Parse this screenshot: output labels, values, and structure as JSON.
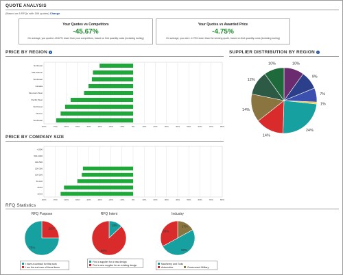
{
  "page": {
    "title": "QUOTE ANALYSIS",
    "based_on_text": "(Based on 8 RFQs with 189 quotes)",
    "change_link": "Change"
  },
  "cards": [
    {
      "title": "Your Quotes vs Competitors",
      "value": "-45.67%",
      "desc": "On average, you quoted -45.67% lower than your competitors, based on first quantity costs (including tooling)"
    },
    {
      "title": "Your Quotes vs Awarded Price",
      "value": "-4.75%",
      "desc": "On average, you were -4.75% lower than the winning quote, based on first quantity costs (including tooling)"
    }
  ],
  "sections": {
    "price_by_region": "PRICE BY REGION",
    "supplier_distribution": "SUPPLIER DISTRIBUTION BY REGION",
    "price_by_company_size": "PRICE BY COMPANY SIZE",
    "rfq_statistics": "RFQ Statistics"
  },
  "colors": {
    "bar_green": "#1fa83a",
    "teal": "#17a0a0",
    "red": "#d92b2b",
    "gold": "#f2c530",
    "navy": "#2b3f8a",
    "purple": "#6a2c6e",
    "olive": "#7d6a3a",
    "darkgreen": "#1e5a3a",
    "accent_green": "#1d8a2c",
    "link_blue": "#1a4f9a"
  },
  "chart_data": [
    {
      "type": "bar",
      "orientation": "horizontal",
      "title": "PRICE BY REGION",
      "categories": [
        "Northeast",
        "Mid-Atlantic",
        "Southeast",
        "Canada",
        "Mountain West",
        "Pacific West",
        "Northwest",
        "Mexico",
        "Southeast"
      ],
      "values": [
        -30,
        -36,
        -37,
        -40,
        -44,
        -56,
        -61,
        -65,
        -69
      ],
      "xlim": [
        -80,
        80
      ],
      "xticks": [
        "-80%",
        "-70%",
        "-60%",
        "-50%",
        "-40%",
        "-30%",
        "-20%",
        "-10%",
        "0%",
        "10%",
        "20%",
        "30%",
        "40%",
        "50%",
        "60%",
        "70%",
        "80%"
      ],
      "grid": true
    },
    {
      "type": "bar",
      "orientation": "horizontal",
      "title": "PRICE BY COMPANY SIZE",
      "categories": [
        "<1000",
        "500-1000",
        "300-500",
        "200-300",
        "100-200",
        "50-100",
        "25-50",
        "10-25"
      ],
      "values": [
        0,
        0,
        0,
        -45,
        -46,
        -50,
        -62,
        -65
      ],
      "xlim": [
        -80,
        80
      ],
      "xticks": [
        "-80%",
        "-70%",
        "-60%",
        "-50%",
        "-40%",
        "-30%",
        "-20%",
        "-10%",
        "0%",
        "10%",
        "20%",
        "30%",
        "40%",
        "50%",
        "60%",
        "70%",
        "80%"
      ],
      "grid": true
    },
    {
      "type": "pie",
      "title": "SUPPLIER DISTRIBUTION BY REGION",
      "slices": [
        {
          "value": 10,
          "label": "10%",
          "color": "#6a2c6e"
        },
        {
          "value": 9,
          "label": "9%",
          "color": "#2b3f8a"
        },
        {
          "value": 7,
          "label": "7%",
          "color": "#3a4fae"
        },
        {
          "value": 1,
          "label": "1%",
          "color": "#f2c530"
        },
        {
          "value": 24,
          "label": "24%",
          "color": "#17a0a0"
        },
        {
          "value": 14,
          "label": "14%",
          "color": "#d92b2b"
        },
        {
          "value": 14,
          "label": "14%",
          "color": "#8a7540"
        },
        {
          "value": 12,
          "label": "12%",
          "color": "#2c5a44"
        },
        {
          "value": 10,
          "label": "10%",
          "color": "#1e6a3a"
        }
      ]
    },
    {
      "type": "pie",
      "title": "RFQ Purpose",
      "slices": [
        {
          "value": 25,
          "label": "25%",
          "color": "#d92b2b"
        },
        {
          "value": 75,
          "label": "75%",
          "color": "#17a0a0"
        }
      ],
      "legend": [
        "I have a contract for this work",
        "I am the end user of these items"
      ]
    },
    {
      "type": "pie",
      "title": "RFQ Intent",
      "slices": [
        {
          "value": 13,
          "label": "13%",
          "color": "#17a0a0"
        },
        {
          "value": 88,
          "label": "88%",
          "color": "#d92b2b"
        }
      ],
      "legend": [
        "Find a supplier for a new design",
        "Find a new supplier for an existing design"
      ]
    },
    {
      "type": "pie",
      "title": "Industry",
      "slices": [
        {
          "value": 17,
          "label": "17%",
          "color": "#8a7540"
        },
        {
          "value": 50,
          "label": "50%",
          "color": "#17a0a0"
        },
        {
          "value": 33,
          "label": "33%",
          "color": "#d92b2b"
        }
      ],
      "legend": [
        "Machinery and Tools",
        "Automotive",
        "Government Military"
      ]
    }
  ]
}
